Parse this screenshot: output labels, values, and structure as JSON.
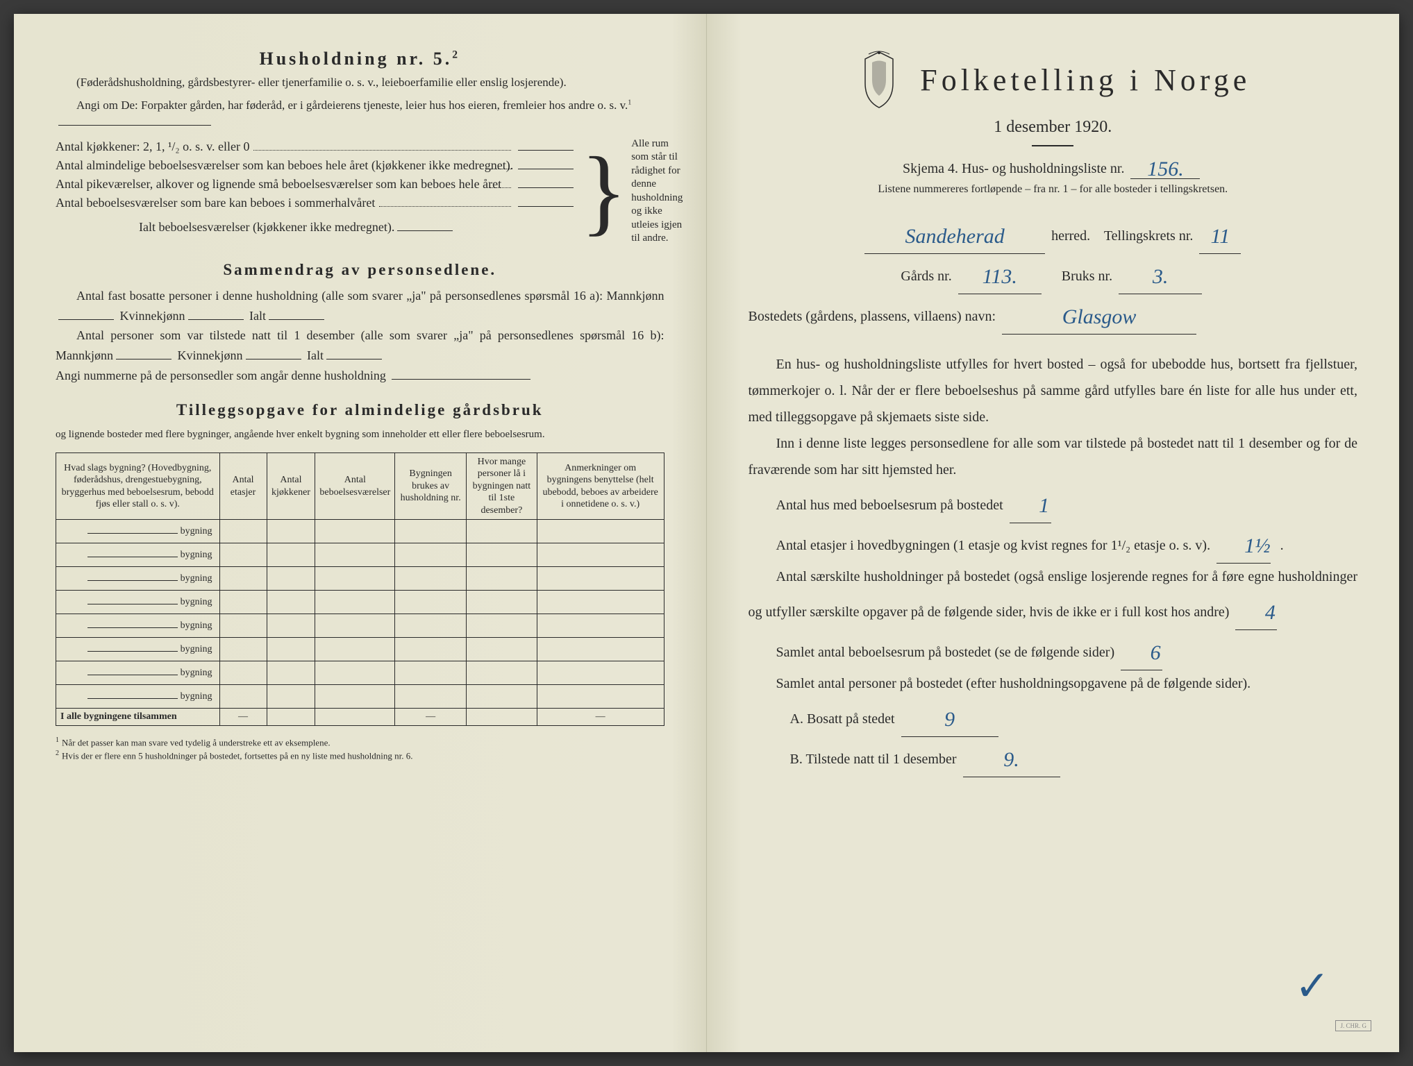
{
  "leftPage": {
    "heading": "Husholdning nr. 5.",
    "headingSup": "2",
    "introParen": "(Føderådshusholdning, gårdsbestyrer- eller tjenerfamilie o. s. v., leieboerfamilie eller enslig losjerende).",
    "introLine": "Angi om De: Forpakter gården, har føderåd, er i gårdeierens tjeneste, leier hus hos eieren, fremleier hos andre o. s. v.",
    "introSup": "1",
    "kitchenLines": [
      "Antal kjøkkener: 2, 1, ¹/₂ o. s. v. eller 0",
      "Antal almindelige beboelsesværelser som kan beboes hele året (kjøkkener ikke medregnet).",
      "Antal pikeværelser, alkover og lignende små beboelsesværelser som kan beboes hele året",
      "Antal beboelsesværelser som bare kan beboes i sommerhalvåret"
    ],
    "ialtLine": "Ialt beboelsesværelser (kjøkkener ikke medregnet).",
    "bracketText": "Alle rum som står til rådighet for denne husholdning og ikke utleies igjen til andre.",
    "section2Title": "Sammendrag av personsedlene.",
    "section2Line1a": "Antal fast bosatte personer i denne husholdning (alle som svarer „ja\" på personsedlenes spørsmål 16 a): Mannkjønn",
    "section2Line1b": "Kvinnekjønn",
    "section2Line1c": "Ialt",
    "section2Line2a": "Antal personer som var tilstede natt til 1 desember (alle som svarer „ja\" på personsedlenes spørsmål 16 b): Mannkjønn",
    "section2Line2b": "Kvinnekjønn",
    "section2Line2c": "Ialt",
    "section2Line3": "Angi nummerne på de personsedler som angår denne husholdning",
    "section3Title": "Tilleggsopgave for almindelige gårdsbruk",
    "section3Sub": "og lignende bosteder med flere bygninger, angående hver enkelt bygning som inneholder ett eller flere beboelsesrum.",
    "tableHeaders": [
      "Hvad slags bygning?\n(Hovedbygning, føderådshus, drengestuebygning, bryggerhus med beboelsesrum, bebodd fjøs eller stall o. s. v).",
      "Antal etasjer",
      "Antal kjøkkener",
      "Antal beboelsesværelser",
      "Bygningen brukes av husholdning nr.",
      "Hvor mange personer lå i bygningen natt til 1ste desember?",
      "Anmerkninger om bygningens benyttelse (helt ubebodd, beboes av arbeidere i onnetidene o. s. v.)"
    ],
    "bygningLabel": "bygning",
    "bygningRows": 8,
    "tableFooter": "I alle bygningene tilsammen",
    "footnote1": "Når det passer kan man svare ved tydelig å understreke ett av eksemplene.",
    "footnote2": "Hvis der er flere enn 5 husholdninger på bostedet, fortsettes på en ny liste med husholdning nr. 6."
  },
  "rightPage": {
    "mainTitle": "Folketelling i Norge",
    "dateLine": "1 desember 1920.",
    "skjemaLine": "Skjema 4.  Hus- og husholdningsliste nr.",
    "skjemaNr": "156.",
    "skjemaSub": "Listene nummereres fortløpende – fra nr. 1 – for alle bosteder i tellingskretsen.",
    "herredLabel": "herred.",
    "herredVal": "Sandeherad",
    "tellingLabel": "Tellingskrets nr.",
    "tellingVal": "11",
    "gardsLabel": "Gårds nr.",
    "gardsVal": "113.",
    "bruksLabel": "Bruks nr.",
    "bruksVal": "3.",
    "bostedLabel": "Bostedets (gårdens, plassens, villaens) navn:",
    "bostedVal": "Glasgow",
    "para1": "En hus- og husholdningsliste utfylles for hvert bosted – også for ubebodde hus, bortsett fra fjellstuer, tømmerkojer o. l.  Når der er flere beboelseshus på samme gård utfylles bare én liste for alle hus under ett, med tilleggsopgave på skjemaets siste side.",
    "para2": "Inn i denne liste legges personsedlene for alle som var tilstede på bostedet natt til 1 desember og for de fraværende som har sitt hjemsted her.",
    "q1Label": "Antal hus med beboelsesrum på bostedet",
    "q1Val": "1",
    "q2Label": "Antal etasjer i hovedbygningen (1 etasje og kvist regnes for 1¹/₂ etasje o. s. v).",
    "q2Val": "1½",
    "q3Label": "Antal særskilte husholdninger på bostedet (også enslige losjerende regnes for å føre egne husholdninger og utfyller særskilte opgaver på de følgende sider, hvis de ikke er i full kost hos andre)",
    "q3Val": "4",
    "q4Label": "Samlet antal beboelsesrum på bostedet (se de følgende sider)",
    "q4Val": "6",
    "q5Label": "Samlet antal personer på bostedet (efter husholdningsopgavene på de følgende sider).",
    "qALabel": "A.  Bosatt på stedet",
    "qAVal": "9",
    "qBLabel": "B.  Tilstede natt til 1 desember",
    "qBVal": "9."
  },
  "colors": {
    "paper": "#e8e6d4",
    "ink": "#2a2a2a",
    "handwriting": "#2a5a8a"
  }
}
